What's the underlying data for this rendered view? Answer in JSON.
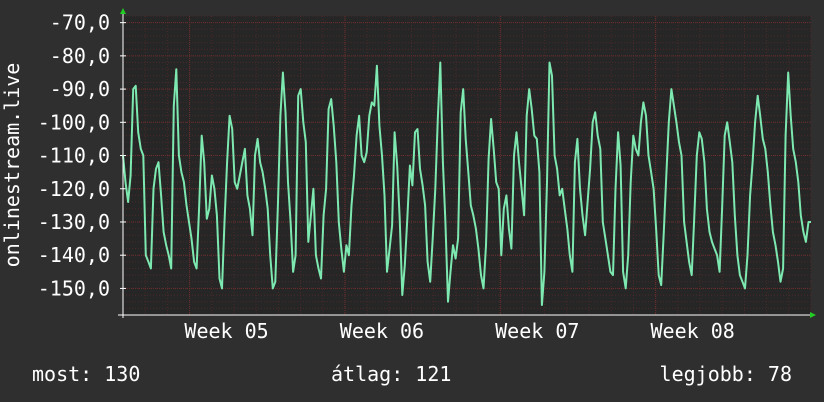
{
  "chart_data": {
    "type": "line",
    "ylabel": "onlinestream.live",
    "ylim": [
      -158,
      -68
    ],
    "y_ticks": [
      -70,
      -80,
      -90,
      -100,
      -110,
      -120,
      -130,
      -140,
      -150
    ],
    "y_tick_labels": [
      "-70,0",
      "-80,0",
      "-90,0",
      "-100,0",
      "-110,0",
      "-120,0",
      "-130,0",
      "-140,0",
      "-150,0"
    ],
    "x_tick_labels": [
      "Week 05",
      "Week 06",
      "Week 07",
      "Week 08"
    ],
    "x_tick_positions": [
      8,
      15,
      22,
      29
    ],
    "xlim": [
      5,
      36
    ],
    "grid": true,
    "colors": {
      "background": "#2f2f2f",
      "plot_background": "#262626",
      "grid_minor": "#4a2a2a",
      "grid_major": "#6a2e2e",
      "line": "#7de8b0",
      "axis": "#ffffff",
      "arrow": "#22cc22"
    },
    "series": [
      {
        "values": [
          -110,
          -118,
          -124,
          -116,
          -90,
          -89,
          -103,
          -108,
          -110,
          -140,
          -142,
          -144,
          -120,
          -114,
          -112,
          -122,
          -133,
          -137,
          -140,
          -144,
          -95,
          -84,
          -110,
          -115,
          -118,
          -125,
          -130,
          -135,
          -142,
          -144,
          -125,
          -104,
          -112,
          -129,
          -126,
          -116,
          -120,
          -128,
          -147,
          -150,
          -130,
          -112,
          -98,
          -102,
          -118,
          -120,
          -116,
          -112,
          -108,
          -122,
          -126,
          -134,
          -110,
          -105,
          -112,
          -115,
          -120,
          -126,
          -140,
          -150,
          -148,
          -125,
          -98,
          -85,
          -97,
          -118,
          -130,
          -145,
          -140,
          -92,
          -90,
          -100,
          -106,
          -136,
          -128,
          -120,
          -140,
          -144,
          -147,
          -128,
          -120,
          -96,
          -93,
          -101,
          -112,
          -130,
          -138,
          -145,
          -137,
          -140,
          -125,
          -116,
          -104,
          -98,
          -110,
          -112,
          -109,
          -98,
          -94,
          -95,
          -83,
          -101,
          -110,
          -122,
          -145,
          -138,
          -131,
          -103,
          -113,
          -129,
          -152,
          -143,
          -129,
          -113,
          -119,
          -103,
          -102,
          -114,
          -119,
          -125,
          -142,
          -148,
          -135,
          -120,
          -99,
          -82,
          -112,
          -130,
          -154,
          -145,
          -137,
          -141,
          -135,
          -97,
          -90,
          -105,
          -115,
          -125,
          -128,
          -132,
          -138,
          -146,
          -150,
          -137,
          -111,
          -99,
          -108,
          -118,
          -120,
          -140,
          -126,
          -122,
          -132,
          -138,
          -110,
          -103,
          -112,
          -120,
          -128,
          -98,
          -90,
          -96,
          -104,
          -105,
          -115,
          -155,
          -145,
          -118,
          -82,
          -86,
          -110,
          -114,
          -122,
          -120,
          -126,
          -132,
          -140,
          -145,
          -112,
          -105,
          -120,
          -128,
          -134,
          -124,
          -114,
          -100,
          -97,
          -104,
          -108,
          -130,
          -135,
          -140,
          -145,
          -146,
          -120,
          -103,
          -113,
          -145,
          -150,
          -140,
          -118,
          -104,
          -108,
          -110,
          -100,
          -94,
          -98,
          -110,
          -115,
          -120,
          -132,
          -146,
          -149,
          -133,
          -116,
          -100,
          -90,
          -95,
          -100,
          -106,
          -110,
          -130,
          -136,
          -142,
          -146,
          -129,
          -110,
          -103,
          -105,
          -112,
          -126,
          -133,
          -136,
          -138,
          -140,
          -145,
          -126,
          -104,
          -100,
          -106,
          -112,
          -128,
          -140,
          -146,
          -148,
          -150,
          -140,
          -122,
          -112,
          -100,
          -92,
          -98,
          -105,
          -108,
          -115,
          -125,
          -133,
          -137,
          -142,
          -148,
          -144,
          -104,
          -85,
          -98,
          -108,
          -112,
          -118,
          -128,
          -133,
          -136,
          -130,
          -130
        ]
      }
    ]
  },
  "footer": {
    "current": "most: 130",
    "average": "átlag: 121",
    "best": "legjobb: 78"
  }
}
